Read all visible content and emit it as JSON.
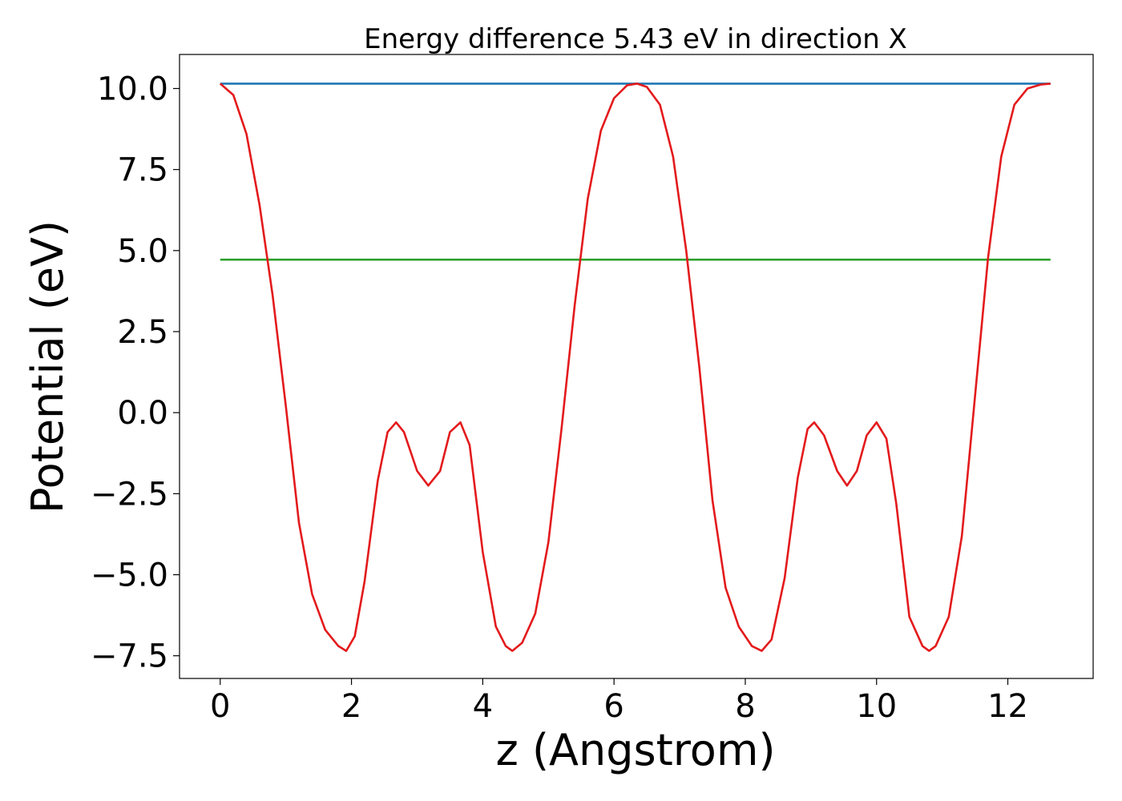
{
  "chart_data": {
    "type": "line",
    "title": "Energy difference 5.43 eV in direction X",
    "xlabel": "z (Angstrom)",
    "ylabel": "Potential (eV)",
    "xlim": [
      -0.62,
      13.3
    ],
    "ylim": [
      -8.2,
      11.05
    ],
    "xticks": [
      0,
      2,
      4,
      6,
      8,
      10,
      12
    ],
    "xtick_labels": [
      "0",
      "2",
      "4",
      "6",
      "8",
      "10",
      "12"
    ],
    "yticks": [
      -7.5,
      -5.0,
      -2.5,
      0.0,
      2.5,
      5.0,
      7.5,
      10.0
    ],
    "ytick_labels": [
      "−7.5",
      "−5.0",
      "−2.5",
      "0.0",
      "2.5",
      "5.0",
      "7.5",
      "10.0"
    ],
    "grid": false,
    "colors": {
      "potential": "#e31a1c",
      "vacuum_level": "#1f77b4",
      "mean_level": "#2ca02c"
    },
    "series": [
      {
        "x": [
          0,
          0.2,
          0.4,
          0.6,
          0.8,
          1.0,
          1.2,
          1.4,
          1.6,
          1.8,
          1.92,
          2.05,
          2.2,
          2.4,
          2.55,
          2.68,
          2.8,
          3.0,
          3.17,
          3.35,
          3.5,
          3.66,
          3.8,
          4.0,
          4.2,
          4.35,
          4.45,
          4.6,
          4.8,
          5.0,
          5.2,
          5.4,
          5.6,
          5.8,
          6.0,
          6.2,
          6.35,
          6.5,
          6.7,
          6.9,
          7.1,
          7.3,
          7.5,
          7.7,
          7.9,
          8.1,
          8.25,
          8.4,
          8.6,
          8.8,
          8.95,
          9.05,
          9.2,
          9.4,
          9.55,
          9.7,
          9.85,
          10.0,
          10.15,
          10.3,
          10.5,
          10.7,
          10.8,
          10.9,
          11.1,
          11.3,
          11.5,
          11.7,
          11.9,
          12.1,
          12.3,
          12.5,
          12.65
        ],
        "y": [
          10.15,
          9.8,
          8.6,
          6.4,
          3.6,
          0.2,
          -3.4,
          -5.6,
          -6.7,
          -7.2,
          -7.35,
          -6.9,
          -5.2,
          -2.1,
          -0.6,
          -0.3,
          -0.6,
          -1.8,
          -2.25,
          -1.8,
          -0.6,
          -0.3,
          -1.0,
          -4.3,
          -6.6,
          -7.2,
          -7.35,
          -7.1,
          -6.2,
          -4.0,
          -0.5,
          3.3,
          6.6,
          8.7,
          9.7,
          10.1,
          10.15,
          10.05,
          9.5,
          7.9,
          5.0,
          1.4,
          -2.7,
          -5.4,
          -6.6,
          -7.2,
          -7.35,
          -7.0,
          -5.1,
          -2.0,
          -0.5,
          -0.3,
          -0.7,
          -1.8,
          -2.25,
          -1.8,
          -0.7,
          -0.3,
          -0.8,
          -2.8,
          -6.3,
          -7.2,
          -7.35,
          -7.2,
          -6.3,
          -3.8,
          0.5,
          4.8,
          7.9,
          9.5,
          10.0,
          10.12,
          10.15
        ]
      },
      {
        "x": [
          0,
          12.65
        ],
        "y": [
          10.15,
          10.15
        ]
      },
      {
        "x": [
          0,
          12.65
        ],
        "y": [
          4.72,
          4.72
        ]
      }
    ]
  }
}
